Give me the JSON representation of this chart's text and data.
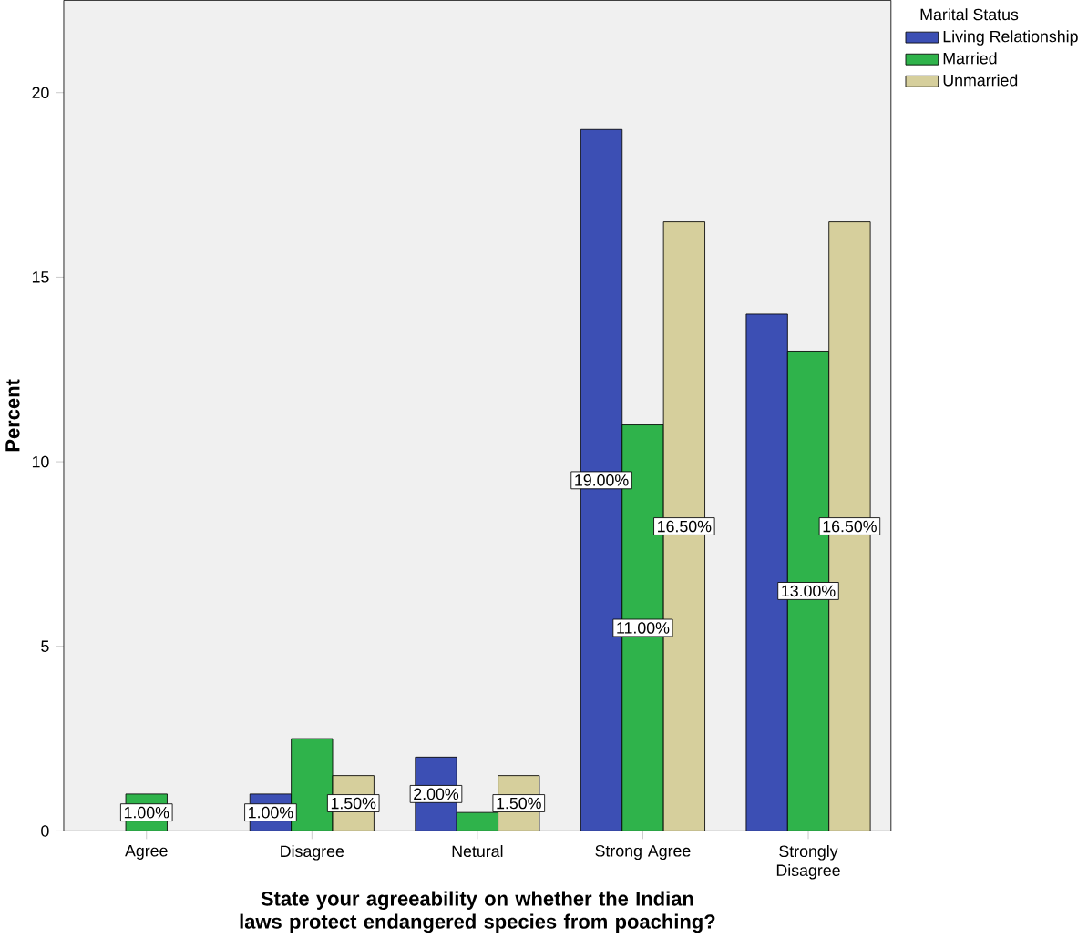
{
  "chart_data": {
    "type": "bar",
    "xlabel": "State your agreeability on whether the Indian laws protect endangered species from poaching?",
    "ylabel": "Percent",
    "legend_title": "Marital Status",
    "legend": "top right",
    "categories": [
      "Agree",
      "Disagree",
      "Netural",
      "Strong Agree",
      "Strongly Disagree"
    ],
    "ylim": [
      0,
      22.5
    ],
    "yticks": [
      0,
      5,
      10,
      15,
      20
    ],
    "series": [
      {
        "name": "Living Relationship",
        "color": "#3c4fb4",
        "values": [
          null,
          1.0,
          2.0,
          19.0,
          14.0
        ],
        "value_labels": [
          null,
          "1.00%",
          "2.00%",
          "19.00%",
          null
        ]
      },
      {
        "name": "Married",
        "color": "#2fb34b",
        "values": [
          1.0,
          2.5,
          0.5,
          11.0,
          13.0
        ],
        "value_labels": [
          "1.00%",
          null,
          null,
          "11.00%",
          "13.00%"
        ]
      },
      {
        "name": "Unmarried",
        "color": "#d6cf9c",
        "values": [
          null,
          1.5,
          1.5,
          16.5,
          16.5
        ],
        "value_labels": [
          null,
          "1.50%",
          "1.50%",
          "16.50%",
          "16.50%"
        ]
      }
    ]
  }
}
